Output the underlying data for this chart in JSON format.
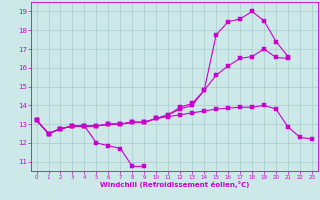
{
  "xlabel": "Windchill (Refroidissement éolien,°C)",
  "bg_color": "#cce8e8",
  "grid_color": "#aacccc",
  "line_color": "#cc00cc",
  "xlim": [
    -0.5,
    23.5
  ],
  "ylim": [
    10.5,
    19.5
  ],
  "xticks": [
    0,
    1,
    2,
    3,
    4,
    5,
    6,
    7,
    8,
    9,
    10,
    11,
    12,
    13,
    14,
    15,
    16,
    17,
    18,
    19,
    20,
    21,
    22,
    23
  ],
  "yticks": [
    11,
    12,
    13,
    14,
    15,
    16,
    17,
    18,
    19
  ],
  "line1_x": [
    0,
    1,
    2,
    3,
    4,
    5,
    6,
    7,
    8,
    9
  ],
  "line1_y": [
    13.2,
    12.5,
    12.75,
    12.9,
    12.9,
    12.0,
    11.85,
    11.7,
    10.75,
    10.75
  ],
  "line2_x": [
    0,
    1,
    2,
    3,
    4,
    5,
    6,
    7,
    8,
    9,
    10,
    11,
    12,
    13,
    14,
    15,
    16,
    17,
    18,
    19,
    20,
    21
  ],
  "line2_y": [
    13.2,
    12.5,
    12.75,
    12.9,
    12.9,
    12.9,
    13.0,
    13.0,
    13.1,
    13.1,
    13.3,
    13.5,
    13.9,
    14.1,
    14.8,
    17.75,
    18.45,
    18.6,
    19.0,
    18.5,
    17.4,
    16.6
  ],
  "line3_x": [
    0,
    1,
    2,
    3,
    4,
    5,
    6,
    7,
    8,
    9,
    10,
    11,
    12,
    13,
    14,
    15,
    16,
    17,
    18,
    19,
    20,
    21
  ],
  "line3_y": [
    13.2,
    12.5,
    12.75,
    12.9,
    12.9,
    12.9,
    13.0,
    13.0,
    13.1,
    13.1,
    13.3,
    13.5,
    13.8,
    14.0,
    14.8,
    15.6,
    16.1,
    16.5,
    16.6,
    17.0,
    16.55,
    16.5
  ],
  "line4_x": [
    0,
    1,
    2,
    3,
    4,
    5,
    6,
    7,
    8,
    9,
    10,
    11,
    12,
    13,
    14,
    15,
    16,
    17,
    18,
    19,
    20,
    21,
    22,
    23
  ],
  "line4_y": [
    13.2,
    12.5,
    12.75,
    12.9,
    12.9,
    12.9,
    13.0,
    13.0,
    13.1,
    13.1,
    13.3,
    13.4,
    13.5,
    13.6,
    13.7,
    13.8,
    13.85,
    13.9,
    13.9,
    14.0,
    13.8,
    12.85,
    12.3,
    12.2
  ]
}
